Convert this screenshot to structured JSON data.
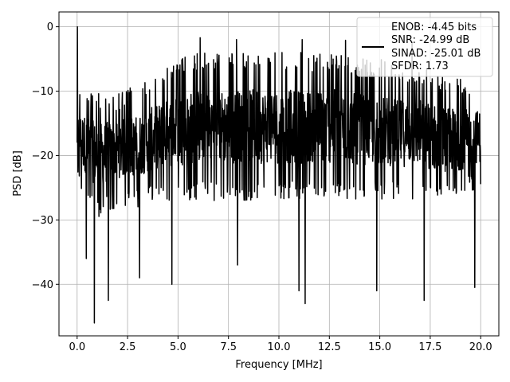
{
  "chart_data": {
    "type": "line",
    "xlabel": "Frequency [MHz]",
    "ylabel": "PSD [dB]",
    "xlim": [
      -0.9,
      20.9
    ],
    "ylim": [
      -48.0,
      2.3
    ],
    "x_ticks": [
      0.0,
      2.5,
      5.0,
      7.5,
      10.0,
      12.5,
      15.0,
      17.5,
      20.0
    ],
    "x_tick_labels": [
      "0.0",
      "2.5",
      "5.0",
      "7.5",
      "10.0",
      "12.5",
      "15.0",
      "17.5",
      "20.0"
    ],
    "y_ticks": [
      0,
      -10,
      -20,
      -30,
      -40
    ],
    "y_tick_labels": [
      "0",
      "−10",
      "−20",
      "−30",
      "−40"
    ],
    "grid": true,
    "legend_position": "top-right",
    "series": [
      {
        "name": "ENOB: -4.45 bits\nSNR: -24.99 dB\nSINAD: -25.01 dB\nSFDR: 1.73",
        "legend_lines": [
          "ENOB: -4.45 bits",
          "SNR: -24.99 dB",
          "SINAD: -25.01 dB",
          "SFDR: 1.73"
        ],
        "color": "#000000",
        "peak": {
          "x": 0.0,
          "y": 0.0
        },
        "x_range": [
          0.0,
          20.0
        ],
        "typical_level": -17,
        "upper_envelope": [
          [
            0.0,
            -9
          ],
          [
            1.0,
            -10
          ],
          [
            2.0,
            -10
          ],
          [
            3.0,
            -9
          ],
          [
            4.0,
            -7
          ],
          [
            5.0,
            -5
          ],
          [
            6.0,
            -4
          ],
          [
            7.0,
            -4
          ],
          [
            8.0,
            -4
          ],
          [
            9.0,
            -4
          ],
          [
            10.0,
            -4
          ],
          [
            11.0,
            -4
          ],
          [
            12.0,
            -4
          ],
          [
            13.0,
            -4
          ],
          [
            14.0,
            -5
          ],
          [
            15.0,
            -5
          ],
          [
            16.0,
            -6
          ],
          [
            17.0,
            -6
          ],
          [
            18.0,
            -7
          ],
          [
            19.0,
            -8
          ],
          [
            20.0,
            -9
          ]
        ],
        "lower_envelope": [
          [
            0.0,
            -25
          ],
          [
            1.0,
            -30
          ],
          [
            2.0,
            -28
          ],
          [
            3.0,
            -28
          ],
          [
            4.0,
            -27
          ],
          [
            5.0,
            -27
          ],
          [
            6.0,
            -27
          ],
          [
            7.0,
            -27
          ],
          [
            8.0,
            -27
          ],
          [
            9.0,
            -27
          ],
          [
            10.0,
            -27
          ],
          [
            11.0,
            -27
          ],
          [
            12.0,
            -27
          ],
          [
            13.0,
            -27
          ],
          [
            14.0,
            -27
          ],
          [
            15.0,
            -27
          ],
          [
            16.0,
            -27
          ],
          [
            17.0,
            -27
          ],
          [
            18.0,
            -28
          ],
          [
            19.0,
            -27
          ],
          [
            20.0,
            -25
          ]
        ],
        "notable_minima": [
          [
            0.45,
            -36
          ],
          [
            0.85,
            -46
          ],
          [
            1.55,
            -42.5
          ],
          [
            3.1,
            -39
          ],
          [
            4.7,
            -40
          ],
          [
            7.95,
            -37
          ],
          [
            11.0,
            -41
          ],
          [
            11.3,
            -43
          ],
          [
            14.85,
            -41
          ],
          [
            17.2,
            -42.5
          ],
          [
            19.7,
            -40.5
          ]
        ],
        "notable_maxima": [
          [
            6.1,
            -1.7
          ],
          [
            7.9,
            -2.0
          ],
          [
            11.15,
            -2.0
          ],
          [
            13.3,
            -2.1
          ],
          [
            16.6,
            -2.3
          ]
        ]
      }
    ]
  }
}
